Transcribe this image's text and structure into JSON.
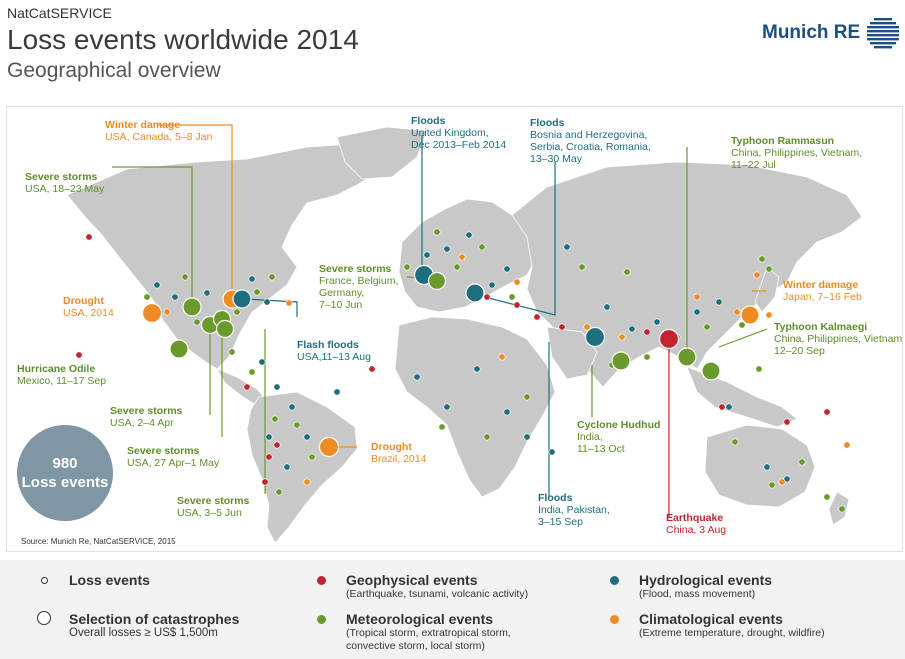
{
  "header": {
    "kicker": "NatCatSERVICE",
    "title": "Loss events worldwide 2014",
    "subtitle": "Geographical overview",
    "logo_text": "Munich RE"
  },
  "colors": {
    "geophysical": "#c22530",
    "meteorological": "#6a9a2c",
    "hydrological": "#1f6e7e",
    "climatological": "#ef8b23",
    "land": "#c8c8c8",
    "counter": "#7f97a4"
  },
  "map": {
    "source": "Source: Munich Re, NatCatSERVICE, 2015",
    "counter": {
      "number": "980",
      "label": "Loss events"
    },
    "callouts": [
      {
        "id": "winter-damage-usa",
        "type": "climatological",
        "title": "Winter damage",
        "detail": "USA, Canada, 5–8 Jan"
      },
      {
        "id": "severe-storms-usa-may",
        "type": "meteorological",
        "title": "Severe storms",
        "detail": "USA, 18–23 May"
      },
      {
        "id": "drought-usa",
        "type": "climatological",
        "title": "Drought",
        "detail": "USA, 2014"
      },
      {
        "id": "hurricane-odile",
        "type": "meteorological",
        "title": "Hurricane Odile",
        "detail": "Mexico, 11–17 Sep"
      },
      {
        "id": "severe-storms-usa-apr",
        "type": "meteorological",
        "title": "Severe storms",
        "detail": "USA, 2–4 Apr"
      },
      {
        "id": "severe-storms-usa-aprmay",
        "type": "meteorological",
        "title": "Severe storms",
        "detail": "USA, 27 Apr–1 May"
      },
      {
        "id": "severe-storms-usa-jun",
        "type": "meteorological",
        "title": "Severe storms",
        "detail": "USA, 3–5 Jun"
      },
      {
        "id": "flash-floods-usa",
        "type": "hydrological",
        "title": "Flash floods",
        "detail": "USA,11–13 Aug"
      },
      {
        "id": "drought-brazil",
        "type": "climatological",
        "title": "Drought",
        "detail": "Brazil, 2014"
      },
      {
        "id": "floods-uk",
        "type": "hydrological",
        "title": "Floods",
        "detail": "United Kingdom,",
        "detail2": "Dec 2013–Feb 2014"
      },
      {
        "id": "floods-balkans",
        "type": "hydrological",
        "title": "Floods",
        "detail": "Bosnia and Herzegovina,",
        "detail2": "Serbia, Croatia, Romania,",
        "detail3": "13–30 May"
      },
      {
        "id": "severe-storms-europe",
        "type": "meteorological",
        "title": "Severe storms",
        "detail": "France, Belgium,",
        "detail2": "Germany,",
        "detail3": "7–10 Jun"
      },
      {
        "id": "typhoon-rammasun",
        "type": "meteorological",
        "title": "Typhoon Rammasun",
        "detail": "China, Philippines, Vietnam,",
        "detail2": "11–22 Jul"
      },
      {
        "id": "winter-damage-japan",
        "type": "climatological",
        "title": "Winter damage",
        "detail": "Japan, 7–16 Feb"
      },
      {
        "id": "typhoon-kalmaegi",
        "type": "meteorological",
        "title": "Typhoon Kalmaegi",
        "detail": "China, Philippines, Vietnam",
        "detail2": "12–20 Sep"
      },
      {
        "id": "cyclone-hudhud",
        "type": "meteorological",
        "title": "Cyclone Hudhud",
        "detail": "India,",
        "detail2": "11–13 Oct"
      },
      {
        "id": "floods-india",
        "type": "hydrological",
        "title": "Floods",
        "detail": "India, Pakistan,",
        "detail2": "3–15 Sep"
      },
      {
        "id": "earthquake-china",
        "type": "geophysical",
        "title": "Earthquake",
        "detail": "China, 3 Aug"
      }
    ]
  },
  "legend": {
    "loss_events": "Loss events",
    "selection_title": "Selection of catastrophes",
    "selection_sub": "Overall losses ≥ US$ 1,500m",
    "geophysical_title": "Geophysical events",
    "geophysical_sub": "(Earthquake, tsunami, volcanic activity)",
    "meteorological_title": "Meteorological events",
    "meteorological_sub1": "(Tropical storm, extratropical storm,",
    "meteorological_sub2": "convective storm, local storm)",
    "hydrological_title": "Hydrological events",
    "hydrological_sub": "(Flood, mass movement)",
    "climatological_title": "Climatological events",
    "climatological_sub": "(Extreme temperature, drought, wildfire)"
  }
}
